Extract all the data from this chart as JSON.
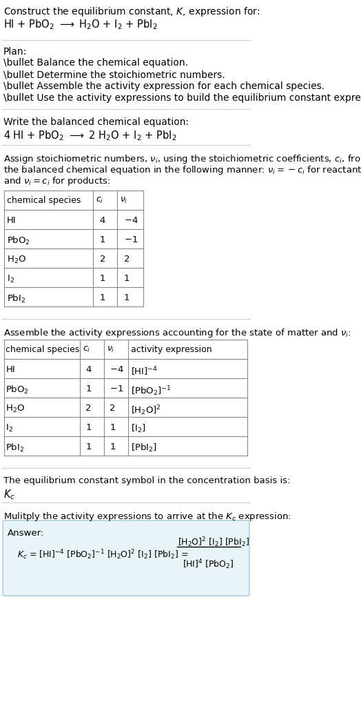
{
  "bg_color": "#ffffff",
  "text_color": "#000000",
  "title_line1": "Construct the equilibrium constant, $K$, expression for:",
  "title_line2": "HI + PbO$_2$ $\\longrightarrow$ H$_2$O + I$_2$ + PbI$_2$",
  "plan_header": "Plan:",
  "plan_bullets": [
    "\\bullet Balance the chemical equation.",
    "\\bullet Determine the stoichiometric numbers.",
    "\\bullet Assemble the activity expression for each chemical species.",
    "\\bullet Use the activity expressions to build the equilibrium constant expression."
  ],
  "balanced_header": "Write the balanced chemical equation:",
  "balanced_eq": "4 HI + PbO$_2$ $\\longrightarrow$ 2 H$_2$O + I$_2$ + PbI$_2$",
  "stoich_header": "Assign stoichiometric numbers, $\\nu_i$, using the stoichiometric coefficients, $c_i$, from\nthe balanced chemical equation in the following manner: $\\nu_i = -c_i$ for reactants\nand $\\nu_i = c_i$ for products:",
  "table1_headers": [
    "chemical species",
    "$c_i$",
    "$\\nu_i$"
  ],
  "table1_rows": [
    [
      "HI",
      "4",
      "$-4$"
    ],
    [
      "PbO$_2$",
      "1",
      "$-1$"
    ],
    [
      "H$_2$O",
      "2",
      "2"
    ],
    [
      "I$_2$",
      "1",
      "1"
    ],
    [
      "PbI$_2$",
      "1",
      "1"
    ]
  ],
  "assemble_header": "Assemble the activity expressions accounting for the state of matter and $\\nu_i$:",
  "table2_headers": [
    "chemical species",
    "$c_i$",
    "$\\nu_i$",
    "activity expression"
  ],
  "table2_rows": [
    [
      "HI",
      "4",
      "$-4$",
      "[HI]$^{-4}$"
    ],
    [
      "PbO$_2$",
      "1",
      "$-1$",
      "[PbO$_2$]$^{-1}$"
    ],
    [
      "H$_2$O",
      "2",
      "2",
      "[H$_2$O]$^2$"
    ],
    [
      "I$_2$",
      "1",
      "1",
      "[I$_2$]"
    ],
    [
      "PbI$_2$",
      "1",
      "1",
      "[PbI$_2$]"
    ]
  ],
  "kc_header": "The equilibrium constant symbol in the concentration basis is:",
  "kc_symbol": "$K_c$",
  "multiply_header": "Mulitply the activity expressions to arrive at the $K_c$ expression:",
  "answer_box_color": "#e8f4f8",
  "answer_border_color": "#a0c8d8",
  "answer_label": "Answer:",
  "answer_eq_left": "$K_c$ = [HI]$^{-4}$ [PbO$_2$]$^{-1}$ [H$_2$O]$^2$ [I$_2$] [PbI$_2$] =",
  "answer_fraction_num": "[H$_2$O]$^2$ [I$_2$] [PbI$_2$]",
  "answer_fraction_den": "[HI]$^4$ [PbO$_2$]"
}
